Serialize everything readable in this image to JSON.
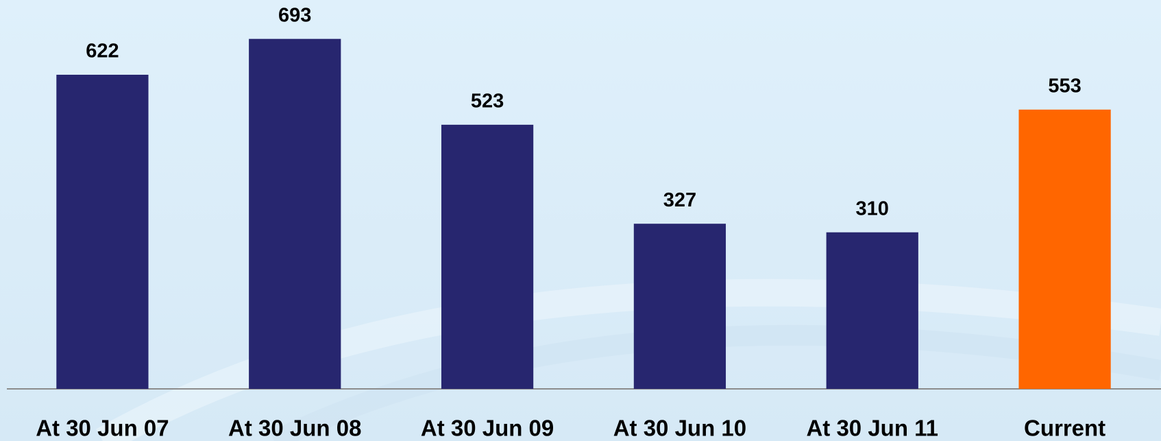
{
  "chart_data": {
    "type": "bar",
    "categories": [
      "At 30 Jun 07",
      "At 30 Jun 08",
      "At 30 Jun 09",
      "At 30 Jun 10",
      "At 30 Jun 11",
      "Current"
    ],
    "values": [
      622,
      693,
      523,
      327,
      310,
      553
    ],
    "colors": [
      "#27266f",
      "#27266f",
      "#27266f",
      "#27266f",
      "#27266f",
      "#ff6600"
    ],
    "ylim": [
      0,
      770
    ]
  }
}
